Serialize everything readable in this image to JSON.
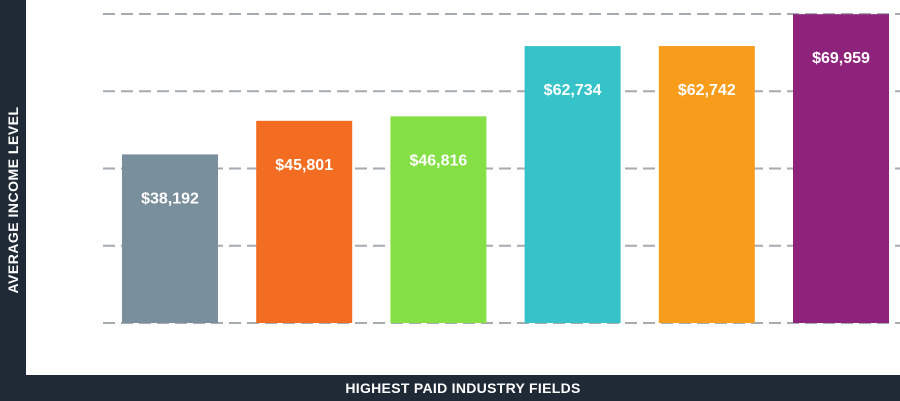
{
  "colors": {
    "frame": "#1f2a36",
    "grid": "#a5abb1"
  },
  "chart_data": {
    "type": "bar",
    "title": "",
    "xlabel": "HIGHEST PAID INDUSTRY FIELDS",
    "ylabel": "AVERAGE INCOME LEVEL",
    "ylim": [
      0,
      70000
    ],
    "grid": true,
    "categories": [
      "",
      "",
      "",
      "",
      "",
      ""
    ],
    "values": [
      38192,
      45801,
      46816,
      62734,
      62742,
      69959
    ],
    "data_labels": [
      "$38,192",
      "$45,801",
      "$46,816",
      "$62,734",
      "$62,742",
      "$69,959"
    ],
    "bar_colors": [
      "#7a8f9c",
      "#f26d21",
      "#84e044",
      "#36c2c9",
      "#f89c1c",
      "#8e237c"
    ]
  }
}
